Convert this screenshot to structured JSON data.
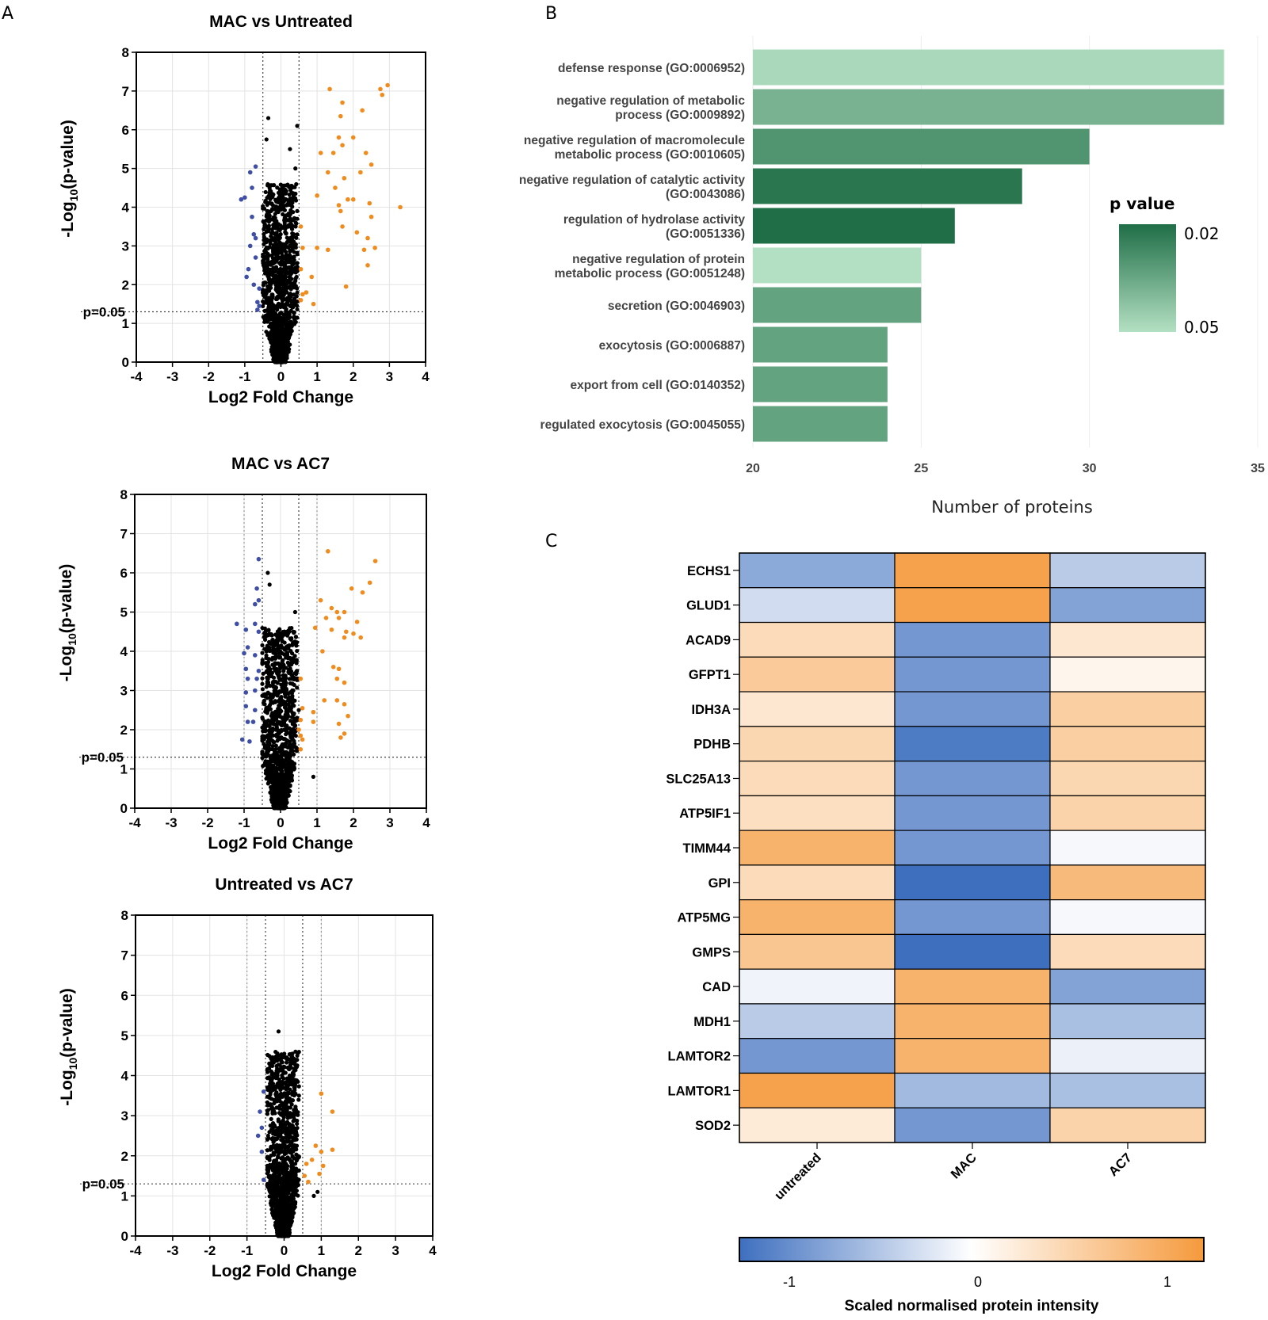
{
  "panels": {
    "a": "A",
    "b": "B",
    "c": "C"
  },
  "volcano_plots": {
    "colors": {
      "down": "#3f4fa6",
      "up": "#f08c1e",
      "ns": "#000000"
    },
    "ylabel_main": "-Log",
    "ylabel_sub": "10",
    "ylabel_tail": "(p-value)",
    "threshold_label": "p=0.05"
  },
  "go_legend": {
    "title": "p value",
    "low": "0.02",
    "high": "0.05"
  },
  "heatmap_colorbar": {
    "title": "Scaled normalised protein intensity",
    "ticks": [
      "-1",
      "0",
      "1"
    ]
  },
  "chart_data": [
    {
      "type": "scatter",
      "id": "volcano1",
      "title": "MAC vs Untreated",
      "xlabel": "Log2 Fold Change",
      "ylabel": "-Log10(p-value)",
      "xlim": [
        -4,
        4
      ],
      "ylim": [
        0,
        8
      ],
      "xticks": [
        "-4",
        "-3",
        "-2",
        "-1",
        "0",
        "1",
        "2",
        "3",
        "4"
      ],
      "yticks": [
        "0",
        "1",
        "2",
        "3",
        "4",
        "5",
        "6",
        "7",
        "8"
      ],
      "fc_cutoffs": [
        -0.5,
        0.5
      ],
      "p_cutoff": 1.3,
      "series": [
        {
          "name": "down",
          "points": [
            [
              -1.0,
              4.25
            ],
            [
              -1.1,
              4.2
            ],
            [
              -0.85,
              4.9
            ],
            [
              -0.7,
              5.05
            ],
            [
              -0.8,
              3.75
            ],
            [
              -0.75,
              3.3
            ],
            [
              -0.85,
              3.0
            ],
            [
              -0.7,
              2.7
            ],
            [
              -0.9,
              2.4
            ],
            [
              -0.95,
              2.2
            ],
            [
              -0.7,
              3.2
            ],
            [
              -0.75,
              2.0
            ],
            [
              -0.6,
              1.9
            ],
            [
              -0.65,
              1.55
            ],
            [
              -0.6,
              1.45
            ],
            [
              -0.65,
              1.35
            ],
            [
              -0.8,
              4.5
            ]
          ]
        },
        {
          "name": "up",
          "points": [
            [
              1.35,
              7.05
            ],
            [
              2.75,
              7.05
            ],
            [
              2.95,
              7.15
            ],
            [
              2.8,
              6.9
            ],
            [
              1.7,
              6.7
            ],
            [
              2.25,
              6.5
            ],
            [
              1.65,
              6.35
            ],
            [
              2.0,
              5.8
            ],
            [
              1.6,
              5.8
            ],
            [
              1.7,
              5.6
            ],
            [
              1.45,
              5.4
            ],
            [
              1.1,
              5.4
            ],
            [
              2.35,
              5.4
            ],
            [
              2.5,
              5.1
            ],
            [
              1.3,
              4.9
            ],
            [
              1.75,
              4.75
            ],
            [
              2.2,
              4.9
            ],
            [
              1.5,
              4.5
            ],
            [
              1.0,
              4.3
            ],
            [
              1.85,
              4.2
            ],
            [
              1.6,
              4.05
            ],
            [
              2.0,
              4.2
            ],
            [
              2.45,
              4.1
            ],
            [
              3.3,
              4.0
            ],
            [
              1.65,
              3.9
            ],
            [
              2.5,
              3.75
            ],
            [
              1.7,
              3.5
            ],
            [
              2.1,
              3.35
            ],
            [
              2.4,
              3.2
            ],
            [
              1.0,
              2.95
            ],
            [
              1.3,
              2.9
            ],
            [
              2.3,
              2.9
            ],
            [
              2.6,
              2.95
            ],
            [
              2.4,
              2.5
            ],
            [
              0.55,
              3.5
            ],
            [
              0.6,
              2.95
            ],
            [
              0.55,
              2.4
            ],
            [
              0.85,
              2.2
            ],
            [
              0.9,
              1.5
            ],
            [
              0.6,
              1.75
            ],
            [
              1.8,
              1.95
            ],
            [
              0.7,
              1.8
            ],
            [
              0.55,
              1.6
            ]
          ]
        }
      ],
      "ns_spread": [
        -0.5,
        0.45
      ],
      "ns_extra": [
        [
          -0.35,
          6.3
        ],
        [
          0.45,
          6.1
        ],
        [
          0.25,
          5.5
        ],
        [
          -0.4,
          5.75
        ],
        [
          0.4,
          5.0
        ],
        [
          0.3,
          4.55
        ],
        [
          0.45,
          3.7
        ],
        [
          0.35,
          3.3
        ],
        [
          0.25,
          2.75
        ],
        [
          0.4,
          2.1
        ]
      ]
    },
    {
      "type": "scatter",
      "id": "volcano2",
      "title": "MAC vs AC7",
      "xlabel": "Log2 Fold Change",
      "ylabel": "-Log10(p-value)",
      "xlim": [
        -4,
        4
      ],
      "ylim": [
        0,
        8
      ],
      "xticks": [
        "-4",
        "-3",
        "-2",
        "-1",
        "0",
        "1",
        "2",
        "3",
        "4"
      ],
      "yticks": [
        "0",
        "1",
        "2",
        "3",
        "4",
        "5",
        "6",
        "7",
        "8"
      ],
      "fc_cutoffs": [
        -0.5,
        0.5
      ],
      "fc_cutoffs_outer": [
        -1,
        1
      ],
      "p_cutoff": 1.3,
      "series": [
        {
          "name": "down",
          "points": [
            [
              -0.6,
              6.35
            ],
            [
              -0.65,
              5.6
            ],
            [
              -0.7,
              5.2
            ],
            [
              -0.6,
              5.3
            ],
            [
              -1.2,
              4.7
            ],
            [
              -0.7,
              4.7
            ],
            [
              -0.95,
              4.55
            ],
            [
              -0.6,
              4.5
            ],
            [
              -0.9,
              4.1
            ],
            [
              -1.0,
              3.95
            ],
            [
              -0.7,
              3.9
            ],
            [
              -0.95,
              3.55
            ],
            [
              -0.6,
              3.5
            ],
            [
              -0.9,
              3.3
            ],
            [
              -0.95,
              2.95
            ],
            [
              -0.7,
              3.0
            ],
            [
              -0.95,
              2.6
            ],
            [
              -0.7,
              2.5
            ],
            [
              -0.9,
              2.2
            ],
            [
              -0.75,
              2.2
            ],
            [
              -1.05,
              1.75
            ],
            [
              -0.85,
              1.7
            ],
            [
              -0.65,
              3.3
            ]
          ]
        },
        {
          "name": "up",
          "points": [
            [
              1.3,
              6.55
            ],
            [
              2.6,
              6.3
            ],
            [
              1.1,
              5.3
            ],
            [
              2.45,
              5.75
            ],
            [
              2.25,
              5.5
            ],
            [
              1.95,
              5.6
            ],
            [
              1.4,
              5.1
            ],
            [
              1.55,
              5.0
            ],
            [
              1.75,
              5.0
            ],
            [
              1.6,
              4.85
            ],
            [
              1.25,
              4.85
            ],
            [
              2.1,
              4.75
            ],
            [
              2.0,
              4.45
            ],
            [
              0.95,
              4.6
            ],
            [
              1.75,
              4.35
            ],
            [
              2.2,
              4.35
            ],
            [
              1.4,
              4.55
            ],
            [
              1.8,
              4.5
            ],
            [
              1.15,
              4.0
            ],
            [
              1.45,
              3.6
            ],
            [
              1.6,
              3.55
            ],
            [
              1.55,
              3.3
            ],
            [
              1.75,
              3.2
            ],
            [
              1.2,
              2.75
            ],
            [
              1.55,
              2.75
            ],
            [
              1.75,
              2.65
            ],
            [
              1.85,
              2.35
            ],
            [
              1.6,
              2.15
            ],
            [
              1.65,
              1.8
            ],
            [
              1.75,
              1.9
            ],
            [
              0.9,
              2.45
            ],
            [
              0.55,
              3.3
            ],
            [
              0.6,
              2.55
            ],
            [
              0.55,
              2.25
            ],
            [
              0.5,
              2.0
            ],
            [
              0.55,
              1.85
            ],
            [
              0.6,
              1.75
            ],
            [
              0.55,
              1.5
            ],
            [
              0.9,
              2.2
            ]
          ]
        }
      ],
      "ns_spread": [
        -0.5,
        0.45
      ],
      "ns_extra": [
        [
          -0.35,
          6.0
        ],
        [
          -0.3,
          5.7
        ],
        [
          0.4,
          5.0
        ],
        [
          0.35,
          4.5
        ],
        [
          0.45,
          3.5
        ],
        [
          0.35,
          3.0
        ],
        [
          0.5,
          2.5
        ],
        [
          0.35,
          2.0
        ],
        [
          0.9,
          0.8
        ]
      ]
    },
    {
      "type": "scatter",
      "id": "volcano3",
      "title": "Untreated vs AC7",
      "xlabel": "Log2 Fold Change",
      "ylabel": "-Log10(p-value)",
      "xlim": [
        -4,
        4
      ],
      "ylim": [
        0,
        8
      ],
      "xticks": [
        "-4",
        "-3",
        "-2",
        "-1",
        "0",
        "1",
        "2",
        "3",
        "4"
      ],
      "yticks": [
        "0",
        "1",
        "2",
        "3",
        "4",
        "5",
        "6",
        "7",
        "8"
      ],
      "fc_cutoffs": [
        -0.5,
        0.5
      ],
      "fc_cutoffs_outer": [
        -1,
        1
      ],
      "p_cutoff": 1.3,
      "series": [
        {
          "name": "down",
          "points": [
            [
              -0.55,
              3.6
            ],
            [
              -0.65,
              3.1
            ],
            [
              -0.7,
              2.5
            ],
            [
              -0.6,
              2.1
            ],
            [
              -0.55,
              1.4
            ],
            [
              -0.6,
              2.7
            ]
          ]
        },
        {
          "name": "up",
          "points": [
            [
              1.0,
              3.55
            ],
            [
              1.3,
              3.1
            ],
            [
              0.85,
              2.25
            ],
            [
              1.0,
              2.1
            ],
            [
              1.3,
              2.15
            ],
            [
              0.75,
              1.9
            ],
            [
              0.6,
              1.8
            ],
            [
              1.05,
              1.75
            ],
            [
              0.95,
              1.55
            ],
            [
              0.55,
              1.5
            ],
            [
              0.65,
              1.35
            ]
          ]
        }
      ],
      "ns_spread": [
        -0.45,
        0.4
      ],
      "ns_extra": [
        [
          -0.15,
          5.1
        ],
        [
          -0.4,
          4.3
        ],
        [
          0.15,
          4.0
        ],
        [
          0.25,
          4.0
        ],
        [
          -0.3,
          3.8
        ],
        [
          0.4,
          3.5
        ],
        [
          0.2,
          3.0
        ],
        [
          -0.2,
          3.2
        ],
        [
          0.8,
          1.0
        ],
        [
          0.9,
          1.1
        ]
      ]
    },
    {
      "type": "bar",
      "id": "go_enrichment",
      "orientation": "horizontal",
      "xlabel": "Number of proteins",
      "xlim": [
        20,
        35
      ],
      "xticks": [
        "20",
        "25",
        "30",
        "35"
      ],
      "categories": [
        [
          "defense response (GO:0006952)"
        ],
        [
          "negative regulation of metabolic",
          "process (GO:0009892)"
        ],
        [
          "negative regulation of macromolecule",
          "metabolic process (GO:0010605)"
        ],
        [
          "negative regulation of catalytic activity",
          "(GO:0043086)"
        ],
        [
          "regulation of hydrolase activity",
          "(GO:0051336)"
        ],
        [
          "negative regulation of protein",
          "metabolic process (GO:0051248)"
        ],
        [
          "secretion (GO:0046903)"
        ],
        [
          "exocytosis (GO:0006887)"
        ],
        [
          "export from cell (GO:0140352)"
        ],
        [
          "regulated exocytosis (GO:0045055)"
        ]
      ],
      "values": [
        34,
        34,
        30,
        28,
        26,
        25,
        25,
        24,
        24,
        24
      ],
      "p_values": [
        0.048,
        0.038,
        0.03,
        0.022,
        0.02,
        0.05,
        0.034,
        0.034,
        0.034,
        0.034
      ],
      "color_scale": {
        "low_p": 0.02,
        "high_p": 0.05,
        "low_color": "#1f6e47",
        "high_color": "#b3e0c2"
      }
    },
    {
      "type": "heatmap",
      "id": "protein_heatmap",
      "rows": [
        "ECHS1",
        "GLUD1",
        "ACAD9",
        "GFPT1",
        "IDH3A",
        "PDHB",
        "SLC25A13",
        "ATP5IF1",
        "TIMM44",
        "GPI",
        "ATP5MG",
        "GMPS",
        "CAD",
        "MDH1",
        "LAMTOR2",
        "LAMTOR1",
        "SOD2"
      ],
      "columns": [
        "untreated",
        "MAC",
        "AC7"
      ],
      "values": [
        [
          -0.75,
          1.15,
          -0.45
        ],
        [
          -0.3,
          1.15,
          -0.8
        ],
        [
          0.45,
          -0.9,
          0.3
        ],
        [
          0.65,
          -0.9,
          0.12
        ],
        [
          0.3,
          -0.9,
          0.6
        ],
        [
          0.5,
          -1.15,
          0.6
        ],
        [
          0.45,
          -0.9,
          0.5
        ],
        [
          0.4,
          -0.9,
          0.55
        ],
        [
          0.95,
          -0.9,
          -0.06
        ],
        [
          0.45,
          -1.25,
          0.85
        ],
        [
          0.95,
          -0.9,
          -0.06
        ],
        [
          0.7,
          -1.25,
          0.45
        ],
        [
          -0.1,
          0.95,
          -0.8
        ],
        [
          -0.45,
          0.95,
          -0.55
        ],
        [
          -0.9,
          0.95,
          -0.12
        ],
        [
          1.15,
          -0.6,
          -0.55
        ],
        [
          0.25,
          -0.9,
          0.55
        ]
      ],
      "vmin": -1.25,
      "vmax": 1.25,
      "color_low": "#3e6fbf",
      "color_mid": "#ffffff",
      "color_high": "#f59a3d",
      "colorbar_label": "Scaled normalised protein intensity",
      "colorbar_ticks": [
        "-1",
        "0",
        "1"
      ]
    }
  ]
}
